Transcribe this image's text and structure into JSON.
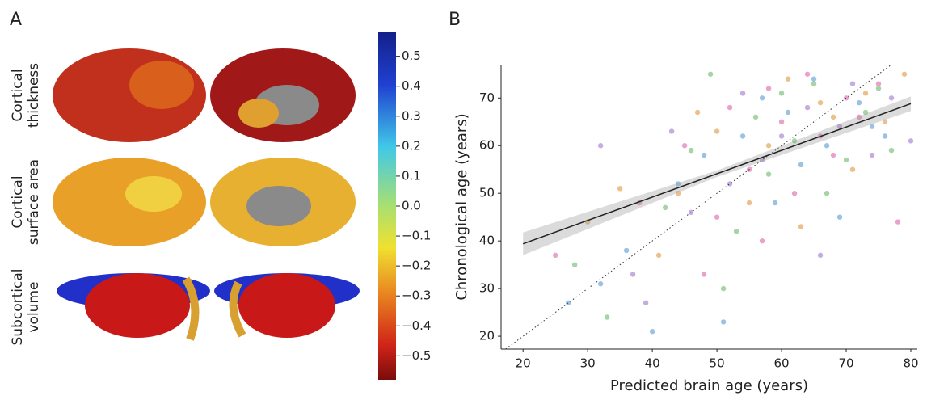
{
  "chart_data": [
    {
      "type": "colorbar",
      "panel_label": "A",
      "row_labels": [
        [
          "Cortical",
          "thickness"
        ],
        [
          "Cortical",
          "surface area"
        ],
        [
          "Subcortical",
          "volume"
        ]
      ],
      "ylim": [
        -0.58,
        0.58
      ],
      "yticks": [
        0.5,
        0.4,
        0.3,
        0.2,
        0.1,
        {
          "value": 0,
          "label": "0.0"
        },
        {
          "value": -0.1,
          "label": "−0.1"
        },
        {
          "value": -0.2,
          "label": "−0.2"
        },
        {
          "value": -0.3,
          "label": "−0.3"
        },
        {
          "value": -0.4,
          "label": "−0.4"
        },
        {
          "value": -0.5,
          "label": "−0.5"
        }
      ]
    },
    {
      "type": "scatter",
      "panel_label": "B",
      "x_label": "Predicted brain age (years)",
      "y_label": "Chronological age (years)",
      "xlim": [
        16.6,
        81
      ],
      "ylim": [
        17.3,
        77
      ],
      "xticks": [
        20,
        30,
        40,
        50,
        60,
        70,
        80
      ],
      "yticks": [
        20,
        30,
        40,
        50,
        60,
        70
      ],
      "identity_line": true,
      "fit": {
        "x": [
          20,
          80
        ],
        "y": [
          39.4,
          68.8
        ],
        "color": "#222222"
      },
      "series": [
        {
          "color": "#e07ab5",
          "x": [
            25,
            38,
            45,
            50,
            52,
            55,
            58,
            60,
            62,
            64,
            66,
            68,
            70,
            72,
            75,
            78,
            48,
            57
          ],
          "y": [
            37,
            48,
            60,
            45,
            68,
            55,
            72,
            65,
            50,
            75,
            62,
            58,
            70,
            66,
            73,
            44,
            33,
            40
          ]
        },
        {
          "color": "#6fa8d8",
          "x": [
            27,
            32,
            40,
            44,
            48,
            51,
            54,
            57,
            59,
            61,
            63,
            65,
            67,
            69,
            72,
            74,
            76,
            36
          ],
          "y": [
            27,
            31,
            21,
            52,
            58,
            23,
            62,
            70,
            48,
            67,
            56,
            74,
            60,
            45,
            69,
            64,
            62,
            38
          ]
        },
        {
          "color": "#7fc27f",
          "x": [
            28,
            33,
            42,
            46,
            49,
            53,
            56,
            58,
            60,
            62,
            65,
            67,
            70,
            73,
            75,
            77,
            51
          ],
          "y": [
            35,
            24,
            47,
            59,
            75,
            42,
            66,
            54,
            71,
            61,
            73,
            50,
            57,
            67,
            72,
            59,
            30
          ]
        },
        {
          "color": "#e5a55a",
          "x": [
            30,
            35,
            41,
            47,
            50,
            55,
            58,
            61,
            63,
            66,
            68,
            71,
            73,
            76,
            79,
            44
          ],
          "y": [
            44,
            51,
            37,
            67,
            63,
            48,
            60,
            74,
            43,
            69,
            66,
            55,
            71,
            65,
            75,
            50
          ]
        },
        {
          "color": "#a98ad6",
          "x": [
            32,
            37,
            43,
            46,
            52,
            54,
            57,
            60,
            64,
            66,
            69,
            71,
            74,
            77,
            80,
            39
          ],
          "y": [
            60,
            33,
            63,
            46,
            52,
            71,
            57,
            62,
            68,
            37,
            64,
            73,
            58,
            70,
            61,
            27
          ]
        }
      ]
    }
  ]
}
